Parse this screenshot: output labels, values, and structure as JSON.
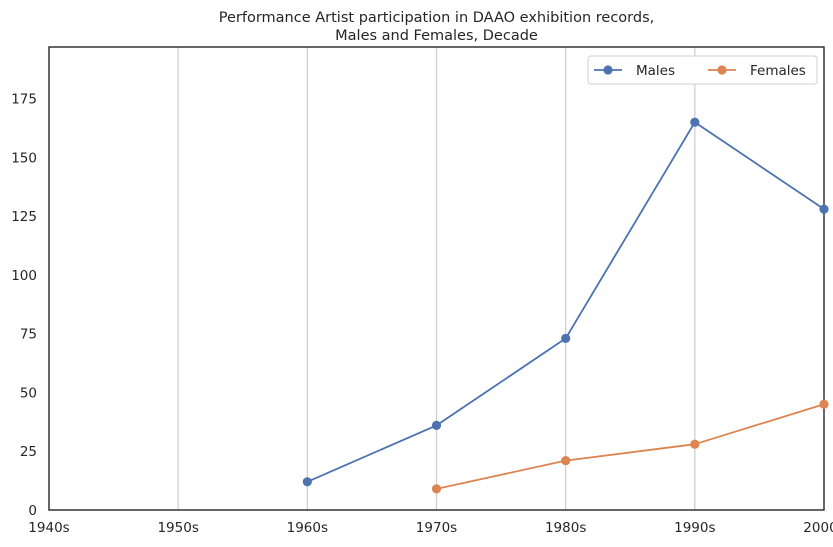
{
  "chart_data": {
    "type": "line",
    "title_lines": [
      "Performance Artist participation in DAAO exhibition records,",
      "Males and Females, Decade"
    ],
    "xlabel": "",
    "ylabel": "",
    "categories": [
      "1940s",
      "1950s",
      "1960s",
      "1970s",
      "1980s",
      "1990s",
      "2000s"
    ],
    "y_ticks": [
      0,
      25,
      50,
      75,
      100,
      125,
      150,
      175
    ],
    "ylim": [
      0,
      197
    ],
    "grid": "vertical",
    "legend_position": "top-right",
    "series": [
      {
        "name": "Males",
        "color": "#4c72b0",
        "values": [
          null,
          null,
          12,
          36,
          73,
          165,
          128
        ]
      },
      {
        "name": "Females",
        "color": "#dd8452",
        "values": [
          null,
          null,
          null,
          9,
          21,
          28,
          45
        ]
      }
    ]
  }
}
